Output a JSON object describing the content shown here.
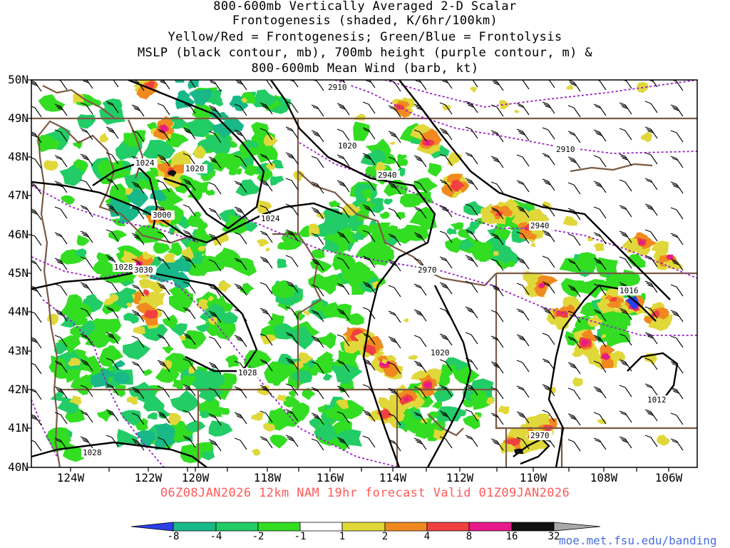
{
  "title_lines": [
    "800-600mb Vertically Averaged 2-D Scalar",
    "Frontogenesis (shaded, K/6hr/100km)",
    "Yellow/Red = Frontogenesis;  Green/Blue = Frontolysis",
    "MSLP (black contour, mb), 700mb height (purple contour, m) &",
    "800-600mb Mean Wind (barb, kt)"
  ],
  "lat_labels": [
    "50N",
    "49N",
    "48N",
    "47N",
    "46N",
    "45N",
    "44N",
    "43N",
    "42N",
    "41N",
    "40N"
  ],
  "lon_labels": [
    "124W",
    "122W",
    "120W",
    "118W",
    "116W",
    "114W",
    "112W",
    "110W",
    "108W",
    "106W"
  ],
  "mslp_labels": [
    "1024",
    "1020",
    "1020",
    "1024",
    "1028",
    "1028",
    "1028",
    "1020",
    "1016",
    "1012"
  ],
  "height_labels": [
    "2910",
    "2910",
    "2940",
    "2940",
    "3000",
    "3030",
    "2970",
    "2970"
  ],
  "footer": "06Z08JAN2026 12km NAM 19hr forecast Valid 01Z09JAN2026",
  "colorbar": {
    "labels": [
      "-8",
      "-4",
      "-2",
      "-1",
      "1",
      "2",
      "4",
      "8",
      "16",
      "32"
    ],
    "colors": [
      "#2b3fe8",
      "#18b888",
      "#22cc66",
      "#33dd22",
      "#ffffff",
      "#e0d83a",
      "#f08a20",
      "#f04040",
      "#e81a8a",
      "#101010",
      "#a8a8a8"
    ]
  },
  "site": "moe.met.fsu.edu/banding"
}
